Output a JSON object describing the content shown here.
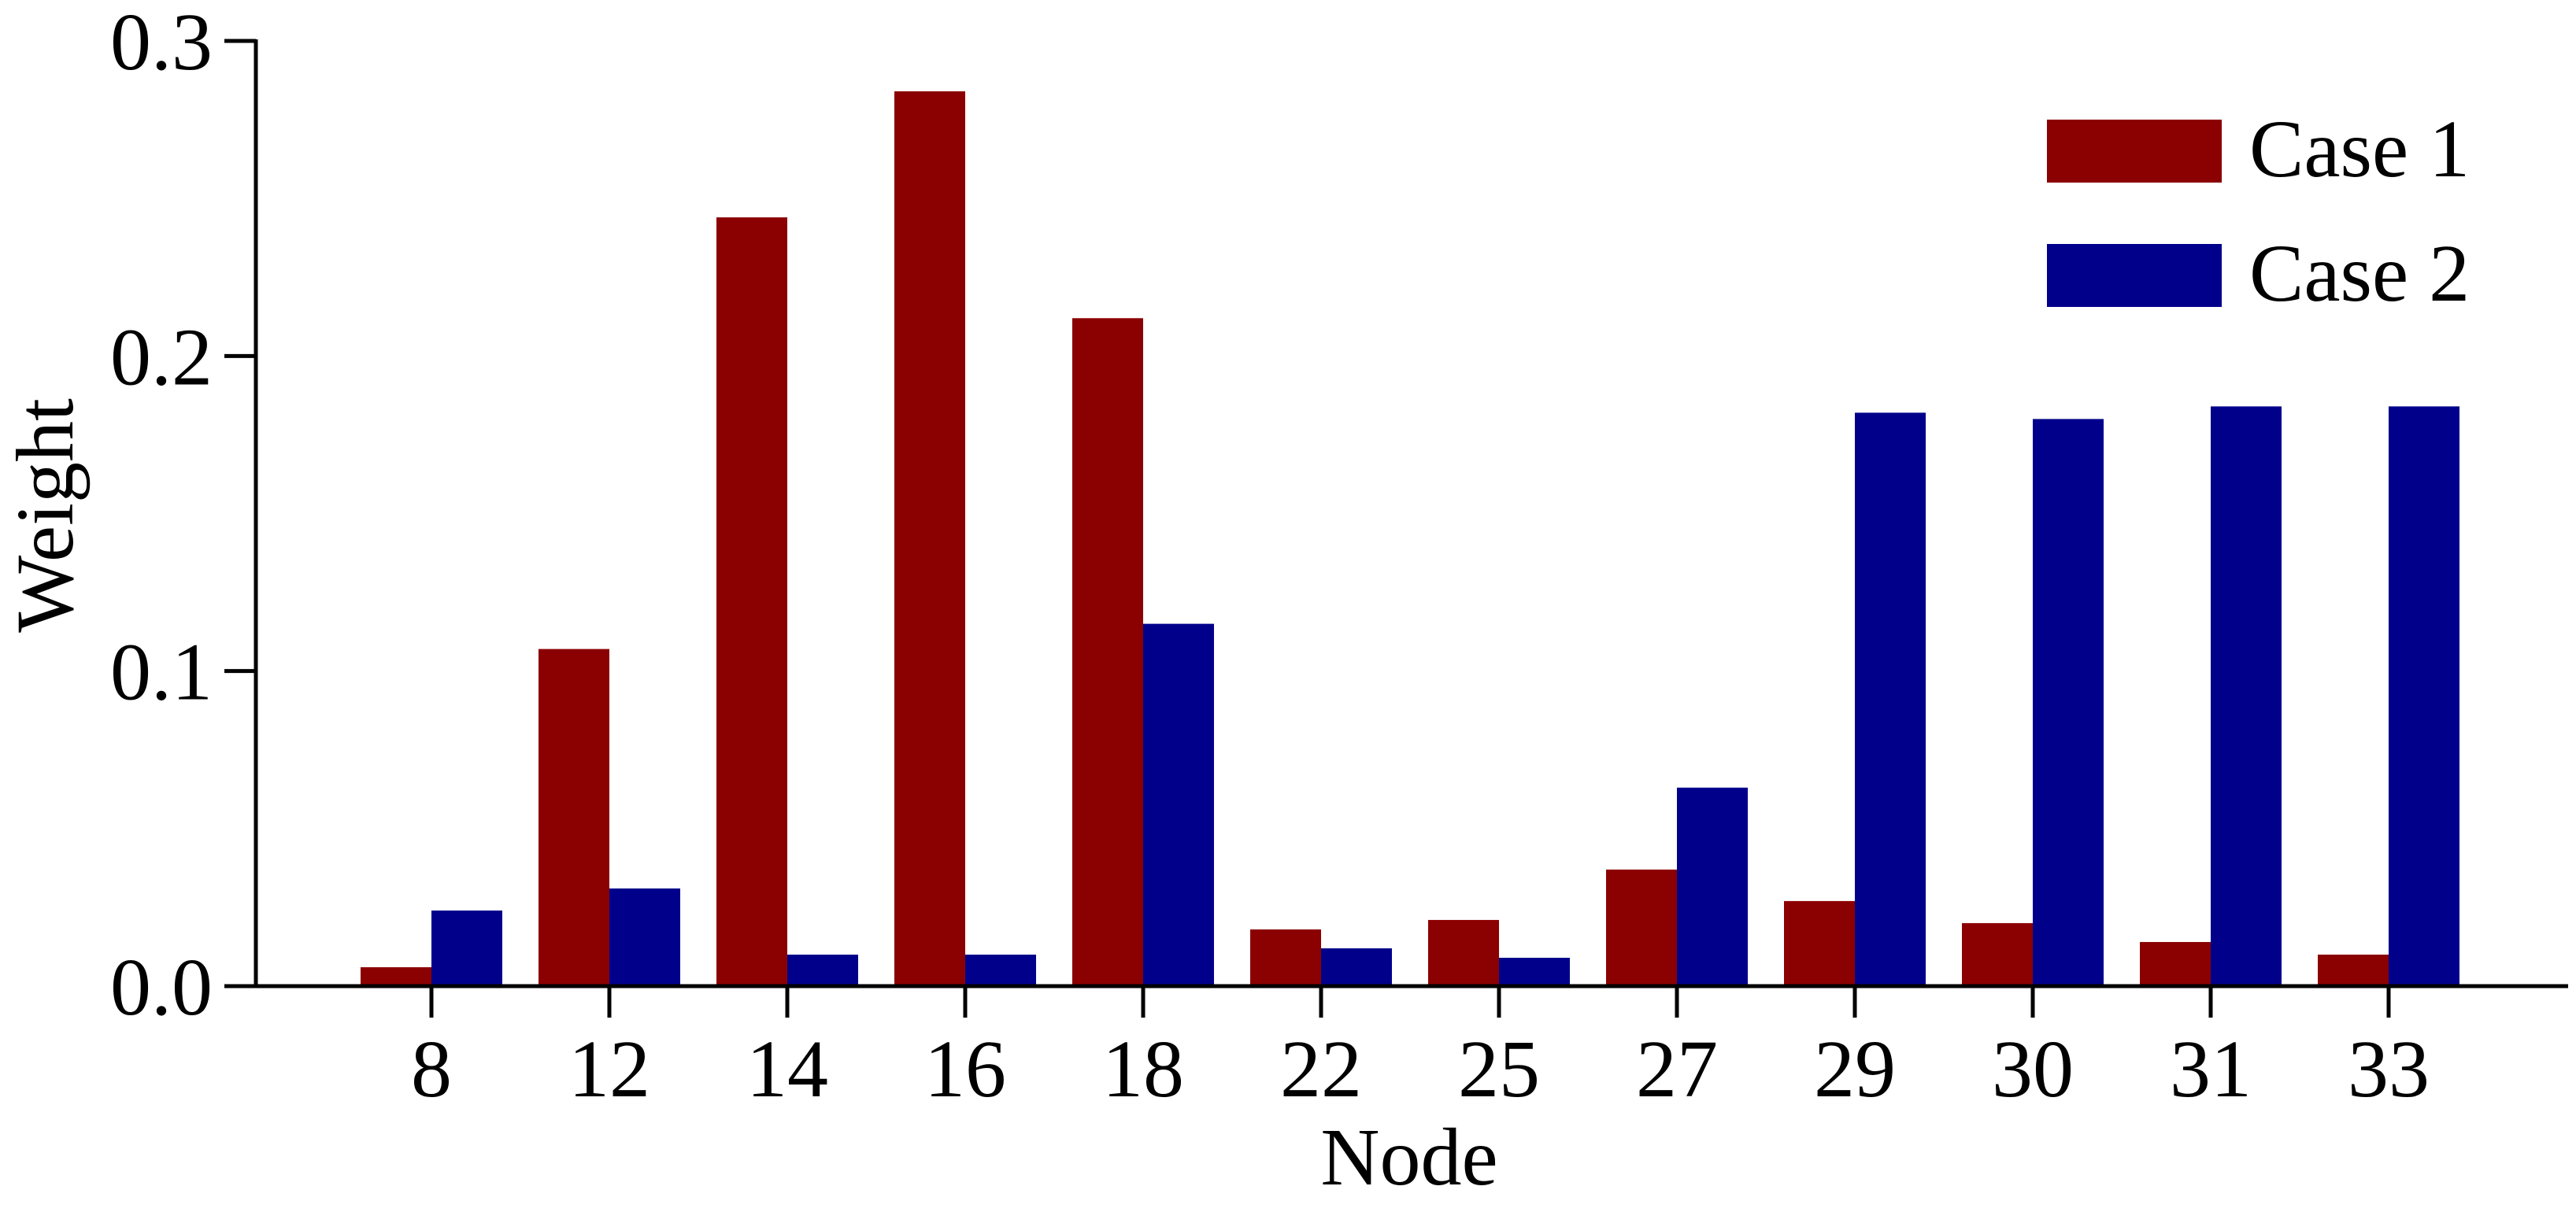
{
  "chart_data": {
    "type": "bar",
    "title": "",
    "xlabel": "Node",
    "ylabel": "Weight",
    "categories": [
      "8",
      "12",
      "14",
      "16",
      "18",
      "22",
      "25",
      "27",
      "29",
      "30",
      "31",
      "33"
    ],
    "series": [
      {
        "name": "Case 1",
        "color": "#8B0000",
        "values": [
          0.006,
          0.107,
          0.244,
          0.284,
          0.212,
          0.018,
          0.021,
          0.037,
          0.027,
          0.02,
          0.014,
          0.01
        ]
      },
      {
        "name": "Case 2",
        "color": "#00008B",
        "values": [
          0.024,
          0.031,
          0.01,
          0.01,
          0.115,
          0.012,
          0.009,
          0.063,
          0.182,
          0.18,
          0.184,
          0.184
        ]
      }
    ],
    "ylim": [
      0,
      0.3
    ],
    "yticks": [
      "0.0",
      "0.1",
      "0.2",
      "0.3"
    ],
    "legend_position": "top-right",
    "grid": false
  }
}
